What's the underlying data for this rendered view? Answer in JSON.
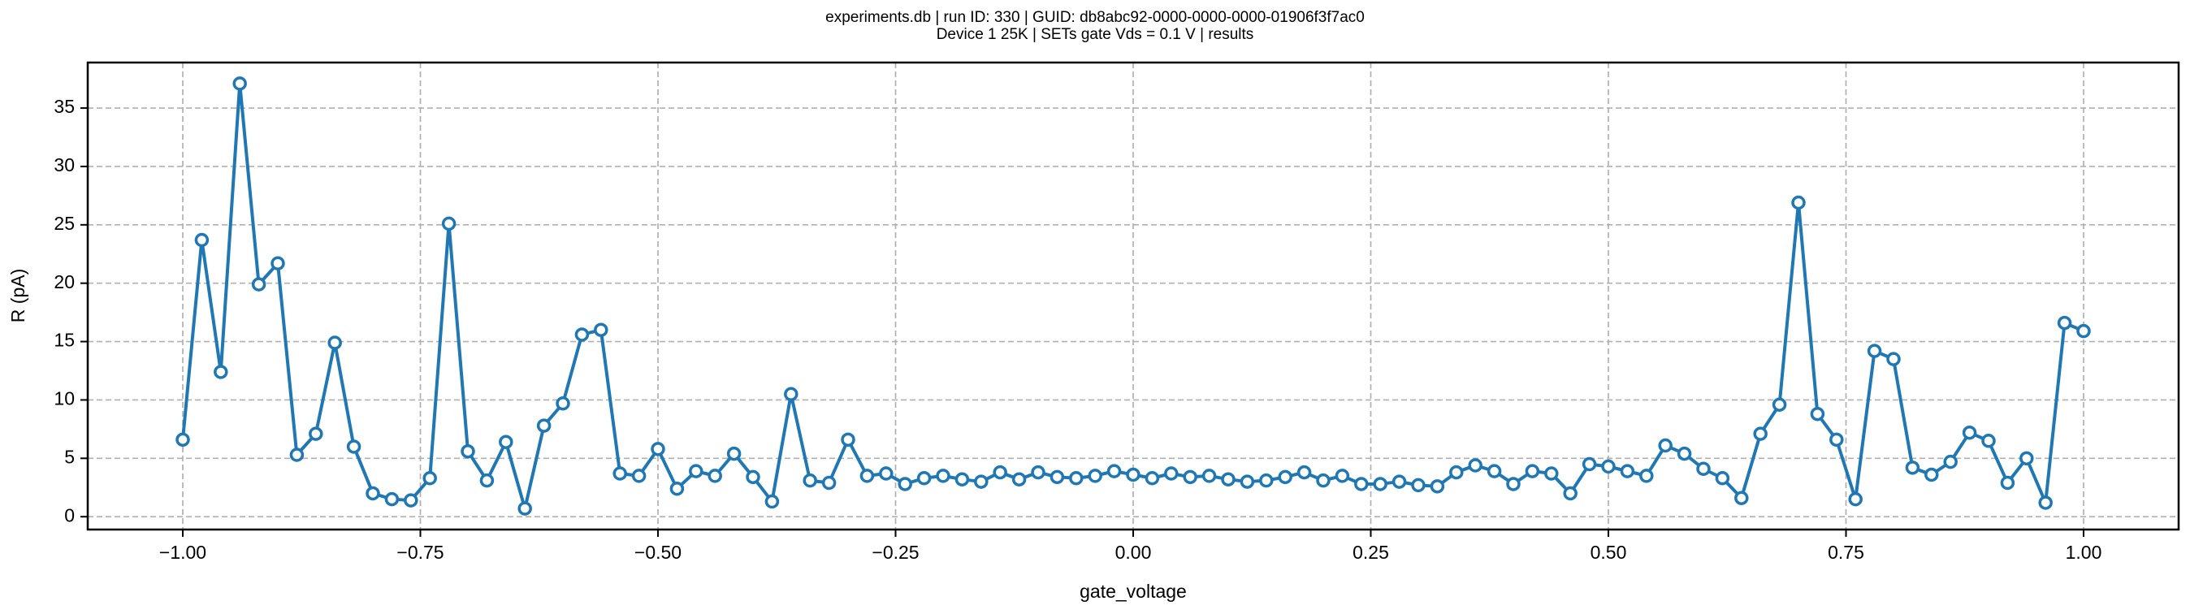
{
  "chart_data": {
    "type": "line",
    "title": "experiments.db | run ID: 330 | GUID: db8abc92-0000-0000-0000-01906f3f7ac0",
    "subtitle": "Device 1 25K | SETs gate Vds = 0.1 V | results",
    "x_label": "gate_voltage",
    "y_label": "R (pA)",
    "x": [
      -1.0,
      -0.98,
      -0.96,
      -0.94,
      -0.92,
      -0.9,
      -0.88,
      -0.86,
      -0.84,
      -0.82,
      -0.8,
      -0.78,
      -0.76,
      -0.74,
      -0.72,
      -0.7,
      -0.68,
      -0.66,
      -0.64,
      -0.62,
      -0.6,
      -0.58,
      -0.56,
      -0.54,
      -0.52,
      -0.5,
      -0.48,
      -0.46,
      -0.44,
      -0.42,
      -0.4,
      -0.38,
      -0.36,
      -0.34,
      -0.32,
      -0.3,
      -0.28,
      -0.26,
      -0.24,
      -0.22,
      -0.2,
      -0.18,
      -0.16,
      -0.14,
      -0.12,
      -0.1,
      -0.08,
      -0.06,
      -0.04,
      -0.02,
      0.0,
      0.02,
      0.04,
      0.06,
      0.08,
      0.1,
      0.12,
      0.14,
      0.16,
      0.18,
      0.2,
      0.22,
      0.24,
      0.26,
      0.28,
      0.3,
      0.32,
      0.34,
      0.36,
      0.38,
      0.4,
      0.42,
      0.44,
      0.46,
      0.48,
      0.5,
      0.52,
      0.54,
      0.56,
      0.58,
      0.6,
      0.62,
      0.64,
      0.66,
      0.68,
      0.7,
      0.72,
      0.74,
      0.76,
      0.78,
      0.8,
      0.82,
      0.84,
      0.86,
      0.88,
      0.9,
      0.92,
      0.94,
      0.96,
      0.98,
      1.0
    ],
    "series": [
      {
        "name": "R (pA)",
        "color": "#1f77b4",
        "values": [
          6.6,
          23.7,
          12.4,
          37.1,
          19.9,
          21.7,
          5.3,
          7.1,
          14.9,
          6.0,
          2.0,
          1.5,
          1.4,
          3.3,
          25.1,
          5.6,
          3.1,
          6.4,
          0.7,
          7.8,
          9.7,
          15.6,
          16.0,
          3.7,
          3.5,
          5.8,
          2.4,
          3.9,
          3.5,
          5.4,
          3.4,
          1.3,
          10.5,
          3.1,
          2.9,
          6.6,
          3.5,
          3.7,
          2.8,
          3.3,
          3.5,
          3.2,
          3.0,
          3.8,
          3.2,
          3.8,
          3.4,
          3.3,
          3.5,
          3.9,
          3.6,
          3.3,
          3.7,
          3.4,
          3.5,
          3.2,
          3.0,
          3.1,
          3.4,
          3.8,
          3.1,
          3.5,
          2.8,
          2.8,
          3.0,
          2.7,
          2.6,
          3.8,
          4.4,
          3.9,
          2.8,
          3.9,
          3.7,
          2.0,
          4.5,
          4.3,
          3.9,
          3.5,
          6.1,
          5.4,
          4.1,
          3.3,
          1.6,
          7.1,
          9.6,
          26.9,
          8.8,
          6.6,
          1.5,
          14.2,
          13.5,
          4.2,
          3.6,
          4.7,
          7.2,
          6.5,
          2.9,
          5.0,
          1.2,
          16.6,
          15.9
        ]
      }
    ],
    "xlim": [
      -1.1,
      1.1
    ],
    "ylim": [
      -1.1,
      38.9
    ],
    "xticks": [
      {
        "value": -1.0,
        "label": "−1.00"
      },
      {
        "value": -0.75,
        "label": "−0.75"
      },
      {
        "value": -0.5,
        "label": "−0.50"
      },
      {
        "value": -0.25,
        "label": "−0.25"
      },
      {
        "value": 0,
        "label": "0.00"
      },
      {
        "value": 0.25,
        "label": "0.25"
      },
      {
        "value": 0.5,
        "label": "0.50"
      },
      {
        "value": 0.75,
        "label": "0.75"
      },
      {
        "value": 1.0,
        "label": "1.00"
      }
    ],
    "yticks": [
      0,
      5,
      10,
      15,
      20,
      25,
      30,
      35
    ],
    "grid": true
  }
}
